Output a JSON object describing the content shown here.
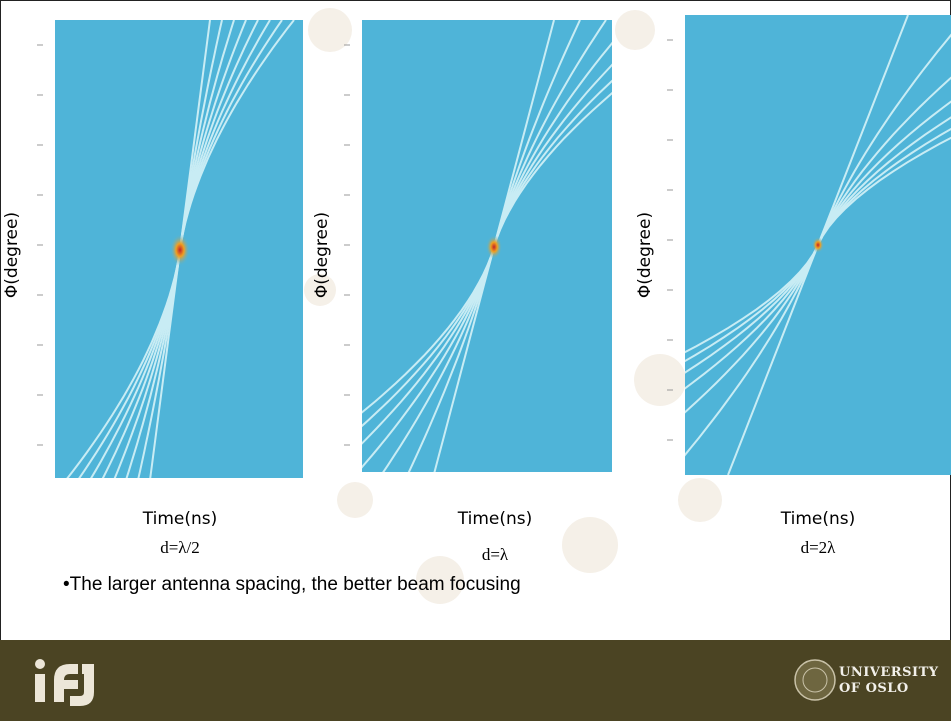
{
  "panels": [
    {
      "y_label": "Φ(degree)",
      "x_label": "Time(ns)",
      "spacing": "d=λ/2"
    },
    {
      "y_label": "Φ(degree)",
      "x_label": "Time(ns)",
      "spacing": "d=λ"
    },
    {
      "y_label": "Φ(degree)",
      "x_label": "Time(ns)",
      "spacing": "d=2λ"
    }
  ],
  "bullet": "•The larger antenna spacing, the better beam focusing",
  "footer": {
    "university": [
      "UNIVERSITY",
      "OF OSLO"
    ]
  }
}
